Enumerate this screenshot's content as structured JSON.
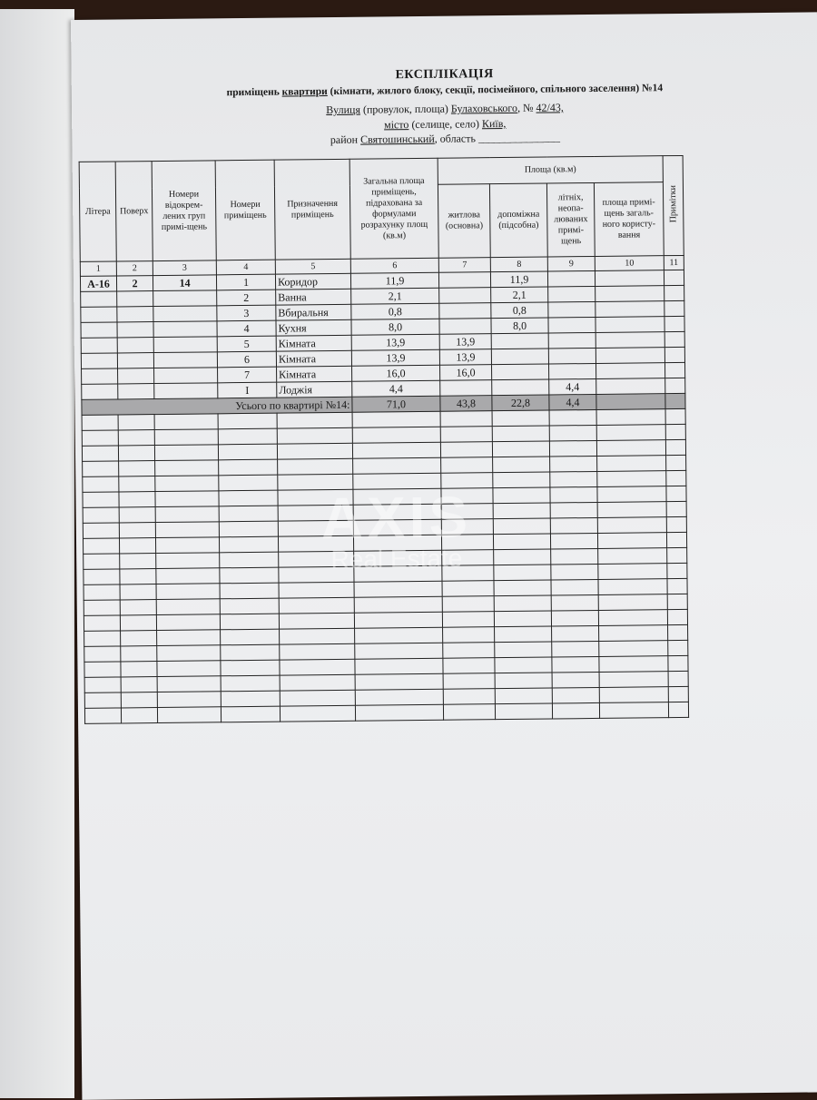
{
  "title": "ЕКСПЛІКАЦІЯ",
  "subtitle": {
    "pre": "приміщень ",
    "underlined": "квартири",
    "post": " (кімнати, жилого блоку, секції, посімейного, спільного заселення) №14"
  },
  "address": {
    "street_label": "Вулиця",
    "street_note": " (провулок, площа) ",
    "street": "Булаховського",
    "number_label": ", № ",
    "number": "42/43,",
    "city_label": "місто",
    "city_note": " (селище, село) ",
    "city": "Київ,",
    "district_label": "район ",
    "district": "Святошинський",
    "region_label": ", область ",
    "region": "_______________"
  },
  "table": {
    "area_group": "Площа (кв.м)",
    "headers": [
      "Літера",
      "Поверх",
      "Номери відокрем-лених груп примі-щень",
      "Номери приміщень",
      "Призначення приміщень",
      "Загальна площа приміщень, підрахована за формулами розрахунку площ (кв.м)",
      "житлова (основна)",
      "допоміжна (підсобна)",
      "літніх, неопа-люваних примі-щень",
      "площа примі-щень загаль-ного користу-вання",
      "Примітки"
    ],
    "column_numbers": [
      "1",
      "2",
      "3",
      "4",
      "5",
      "6",
      "7",
      "8",
      "9",
      "10",
      "11"
    ],
    "rows": [
      [
        "А-16",
        "2",
        "14",
        "1",
        "Коридор",
        "11,9",
        "",
        "11,9",
        "",
        "",
        ""
      ],
      [
        "",
        "",
        "",
        "2",
        "Ванна",
        "2,1",
        "",
        "2,1",
        "",
        "",
        ""
      ],
      [
        "",
        "",
        "",
        "3",
        "Вбиральня",
        "0,8",
        "",
        "0,8",
        "",
        "",
        ""
      ],
      [
        "",
        "",
        "",
        "4",
        "Кухня",
        "8,0",
        "",
        "8,0",
        "",
        "",
        ""
      ],
      [
        "",
        "",
        "",
        "5",
        "Кімната",
        "13,9",
        "13,9",
        "",
        "",
        "",
        ""
      ],
      [
        "",
        "",
        "",
        "6",
        "Кімната",
        "13,9",
        "13,9",
        "",
        "",
        "",
        ""
      ],
      [
        "",
        "",
        "",
        "7",
        "Кімната",
        "16,0",
        "16,0",
        "",
        "",
        "",
        ""
      ],
      [
        "",
        "",
        "",
        "I",
        "Лоджія",
        "4,4",
        "",
        "",
        "4,4",
        "",
        ""
      ]
    ],
    "total": {
      "label": "Усього по квартирі №14:",
      "values": [
        "71,0",
        "43,8",
        "22,8",
        "4,4",
        "",
        ""
      ]
    }
  },
  "watermark": {
    "line1": "AXIS",
    "line2": "Real Estate"
  }
}
